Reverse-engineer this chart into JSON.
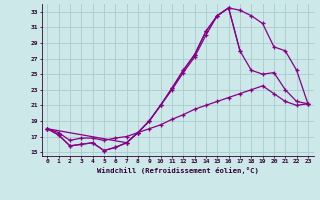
{
  "bg_color": "#cce8e8",
  "grid_color": "#aacccc",
  "line_color": "#880088",
  "marker": "+",
  "xlabel": "Windchill (Refroidissement éolien,°C)",
  "xlim": [
    -0.5,
    23.5
  ],
  "ylim": [
    14.5,
    34.0
  ],
  "yticks": [
    15,
    17,
    19,
    21,
    23,
    25,
    27,
    29,
    31,
    33
  ],
  "xticks": [
    0,
    1,
    2,
    3,
    4,
    5,
    6,
    7,
    8,
    9,
    10,
    11,
    12,
    13,
    14,
    15,
    16,
    17,
    18,
    19,
    20,
    21,
    22,
    23
  ],
  "line1_x": [
    0,
    1,
    2,
    3,
    4,
    5,
    6,
    7,
    8,
    9,
    10,
    11,
    12,
    13,
    14,
    15,
    16,
    17,
    18,
    19,
    20,
    21,
    22,
    23
  ],
  "line1_y": [
    18.0,
    17.2,
    15.8,
    16.0,
    16.2,
    15.2,
    15.6,
    16.2,
    17.5,
    19.0,
    21.0,
    23.0,
    25.2,
    27.2,
    30.0,
    32.5,
    33.5,
    33.2,
    32.5,
    31.5,
    28.5,
    28.0,
    25.5,
    21.2
  ],
  "line2_x": [
    0,
    1,
    2,
    3,
    4,
    5,
    6,
    7,
    8,
    9,
    10,
    11,
    12,
    13,
    14,
    15,
    16,
    17
  ],
  "line2_y": [
    18.0,
    17.2,
    15.8,
    16.0,
    16.2,
    15.2,
    15.6,
    16.2,
    17.5,
    19.0,
    21.0,
    23.2,
    25.5,
    27.5,
    30.5,
    32.5,
    33.5,
    28.0
  ],
  "line3_x": [
    0,
    7,
    8,
    9,
    10,
    11,
    12,
    13,
    14,
    15,
    16,
    17,
    18,
    19,
    20,
    21,
    22,
    23
  ],
  "line3_y": [
    18.0,
    16.2,
    17.5,
    19.0,
    21.0,
    23.2,
    25.5,
    27.5,
    30.5,
    32.5,
    33.5,
    28.0,
    25.5,
    25.0,
    25.2,
    23.0,
    21.5,
    21.2
  ],
  "line4_x": [
    0,
    1,
    2,
    3,
    4,
    5,
    6,
    7,
    8,
    9,
    10,
    11,
    12,
    13,
    14,
    15,
    16,
    17,
    18,
    19,
    20,
    21,
    22,
    23
  ],
  "line4_y": [
    18.0,
    17.5,
    16.5,
    16.8,
    16.8,
    16.5,
    16.8,
    17.0,
    17.5,
    18.0,
    18.5,
    19.2,
    19.8,
    20.5,
    21.0,
    21.5,
    22.0,
    22.5,
    23.0,
    23.5,
    22.5,
    21.5,
    21.0,
    21.2
  ]
}
